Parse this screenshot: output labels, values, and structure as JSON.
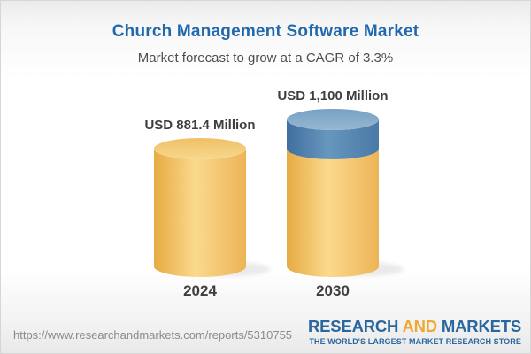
{
  "chart_data": {
    "type": "bar",
    "style": "3d-cylinder-infographic",
    "title": "Church Management Software Market",
    "subtitle": "Market forecast to grow at a CAGR of 3.3%",
    "title_color": "#2168AD",
    "subtitle_color": "#4E4E4E",
    "categories": [
      "2024",
      "2030"
    ],
    "values": [
      881.4,
      1100
    ],
    "unit": "USD Million",
    "value_labels": [
      "USD 881.4 Million",
      "USD 1,100 Million"
    ],
    "cagr_percent": 3.3,
    "base_value": 881.4,
    "legend": "none",
    "grid": "off",
    "value_label_color": "#3E3E3E",
    "category_label_color": "#3E3E3E",
    "colors": {
      "gold_dark": "#E7AB43",
      "gold_light": "#FAD98D",
      "gold_edge": "#EDB456",
      "gold_cap_dark": "#EFC066",
      "gold_cap_light": "#F6D88E",
      "blue_dark": "#3F6F9E",
      "blue_light": "#6796BE",
      "blue_edge": "#497AA6",
      "blue_cap_dark": "#77A1C3",
      "blue_cap_light": "#96B8D2"
    }
  },
  "footer": {
    "url": "https://www.researchandmarkets.com/reports/5310755",
    "url_color": "#8A8A8A",
    "logo": {
      "word1": "RESEARCH",
      "word2": "AND",
      "word3": "MARKETS",
      "tagline": "THE WORLD'S LARGEST MARKET RESEARCH STORE",
      "blue": "#29679E",
      "orange": "#F0A832"
    }
  }
}
